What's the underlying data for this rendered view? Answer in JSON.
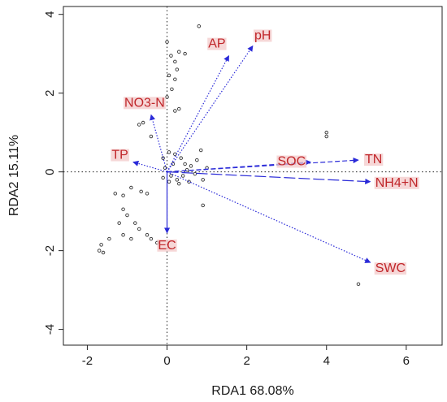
{
  "colors": {
    "arrow": "#2a2ad8",
    "label": "#c0262a",
    "site": "#333333",
    "frame": "#222222",
    "zero_line": "#222222"
  },
  "chart_data": {
    "type": "scatter",
    "xlabel": "RDA1 68.08%",
    "ylabel": "RDA2 15.11%",
    "xlim": [
      -2.6,
      6.9
    ],
    "ylim": [
      -4.4,
      4.2
    ],
    "x_ticks": [
      -2,
      0,
      2,
      4,
      6
    ],
    "y_ticks": [
      -4,
      -2,
      0,
      2,
      4
    ],
    "grid": false,
    "zero_lines": true,
    "vectors": [
      {
        "label": "AP",
        "x": 1.55,
        "y": 2.95,
        "style": "dotted"
      },
      {
        "label": "pH",
        "x": 2.15,
        "y": 3.2,
        "style": "dotted"
      },
      {
        "label": "NO3-N",
        "x": -0.4,
        "y": 1.45,
        "style": "dotted"
      },
      {
        "label": "TP",
        "x": -0.85,
        "y": 0.25,
        "style": "dotted"
      },
      {
        "label": "SOC",
        "x": 3.6,
        "y": 0.25,
        "style": "dashed"
      },
      {
        "label": "TN",
        "x": 4.8,
        "y": 0.3,
        "style": "dashed"
      },
      {
        "label": "NH4+N",
        "x": 5.1,
        "y": -0.25,
        "style": "longdash"
      },
      {
        "label": "EC",
        "x": 0.0,
        "y": -1.55,
        "style": "solid"
      },
      {
        "label": "SWC",
        "x": 5.1,
        "y": -2.3,
        "style": "dotted"
      }
    ],
    "sites": [
      [
        0.8,
        3.7
      ],
      [
        0.0,
        3.3
      ],
      [
        0.3,
        3.05
      ],
      [
        0.45,
        3.0
      ],
      [
        0.1,
        2.95
      ],
      [
        0.2,
        2.8
      ],
      [
        0.25,
        2.6
      ],
      [
        0.05,
        2.45
      ],
      [
        0.2,
        2.35
      ],
      [
        0.12,
        2.1
      ],
      [
        0.0,
        1.9
      ],
      [
        0.3,
        1.6
      ],
      [
        0.2,
        1.55
      ],
      [
        -0.7,
        1.2
      ],
      [
        -0.6,
        1.25
      ],
      [
        -0.4,
        0.9
      ],
      [
        -0.9,
        -0.4
      ],
      [
        -1.3,
        -0.55
      ],
      [
        -1.1,
        -0.6
      ],
      [
        -0.65,
        -0.5
      ],
      [
        -0.5,
        -0.55
      ],
      [
        -1.1,
        -0.95
      ],
      [
        -1.0,
        -1.1
      ],
      [
        -0.8,
        -1.3
      ],
      [
        -1.2,
        -1.3
      ],
      [
        -0.7,
        -1.45
      ],
      [
        -0.9,
        -1.7
      ],
      [
        -0.4,
        -1.7
      ],
      [
        -0.5,
        -1.6
      ],
      [
        -0.25,
        -1.8
      ],
      [
        -1.1,
        -1.6
      ],
      [
        -1.45,
        -1.7
      ],
      [
        -1.65,
        -1.85
      ],
      [
        -1.7,
        -2.0
      ],
      [
        -1.6,
        -2.05
      ],
      [
        0.9,
        -0.85
      ],
      [
        -0.1,
        0.35
      ],
      [
        0.05,
        0.5
      ],
      [
        0.2,
        0.45
      ],
      [
        0.35,
        0.35
      ],
      [
        0.45,
        0.2
      ],
      [
        0.5,
        0.05
      ],
      [
        0.4,
        -0.1
      ],
      [
        0.25,
        -0.2
      ],
      [
        0.05,
        -0.25
      ],
      [
        -0.1,
        -0.15
      ],
      [
        0.6,
        0.15
      ],
      [
        0.7,
        -0.05
      ],
      [
        0.3,
        -0.3
      ],
      [
        0.55,
        -0.25
      ],
      [
        -0.05,
        0.1
      ],
      [
        0.15,
        0.2
      ],
      [
        0.75,
        0.3
      ],
      [
        0.1,
        -0.1
      ],
      [
        0.85,
        0.55
      ],
      [
        1.0,
        0.1
      ],
      [
        0.9,
        -0.2
      ],
      [
        4.0,
        1.0
      ],
      [
        4.0,
        0.9
      ],
      [
        4.8,
        -2.85
      ]
    ]
  }
}
